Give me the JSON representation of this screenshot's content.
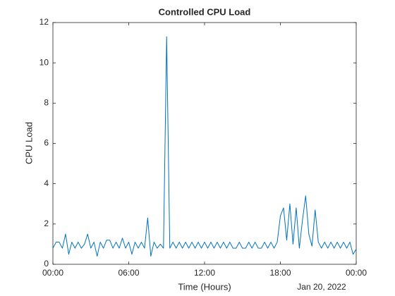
{
  "chart_data": {
    "type": "line",
    "title": "Controlled CPU Load",
    "xlabel": "Time (Hours)",
    "ylabel": "CPU Load",
    "annotation": "Jan 20, 2022",
    "x": [
      0,
      0.25,
      0.5,
      0.75,
      1,
      1.25,
      1.5,
      1.75,
      2,
      2.25,
      2.5,
      2.75,
      3,
      3.25,
      3.5,
      3.75,
      4,
      4.25,
      4.5,
      4.75,
      5,
      5.25,
      5.5,
      5.75,
      6,
      6.25,
      6.5,
      6.75,
      7,
      7.25,
      7.5,
      7.75,
      8,
      8.25,
      8.5,
      8.75,
      9,
      9.25,
      9.5,
      9.75,
      10,
      10.25,
      10.5,
      10.75,
      11,
      11.25,
      11.5,
      11.75,
      12,
      12.25,
      12.5,
      12.75,
      13,
      13.25,
      13.5,
      13.75,
      14,
      14.25,
      14.5,
      14.75,
      15,
      15.25,
      15.5,
      15.75,
      16,
      16.25,
      16.5,
      16.75,
      17,
      17.25,
      17.5,
      17.75,
      18,
      18.25,
      18.5,
      18.75,
      19,
      19.25,
      19.5,
      19.75,
      20,
      20.25,
      20.5,
      20.75,
      21,
      21.25,
      21.5,
      21.75,
      22,
      22.25,
      22.5,
      22.75,
      23,
      23.25,
      23.5,
      23.75,
      24
    ],
    "series": [
      {
        "name": "CPU Load",
        "color": "#0072bd",
        "values": [
          0.8,
          1.1,
          1.1,
          0.8,
          1.5,
          0.5,
          1.1,
          0.8,
          1.1,
          0.8,
          1.0,
          1.5,
          0.8,
          1.1,
          0.4,
          1.1,
          0.8,
          1.2,
          1.2,
          0.8,
          1.1,
          0.8,
          1.3,
          0.8,
          1.1,
          0.5,
          1.1,
          0.8,
          1.1,
          0.8,
          2.3,
          0.4,
          1.1,
          0.8,
          1.0,
          0.8,
          11.3,
          0.8,
          1.1,
          0.8,
          1.1,
          0.8,
          1.1,
          0.8,
          1.1,
          0.8,
          1.1,
          0.8,
          1.1,
          0.8,
          1.1,
          0.8,
          1.1,
          0.8,
          1.1,
          0.8,
          1.1,
          0.8,
          0.8,
          1.1,
          0.8,
          0.8,
          1.1,
          0.8,
          1.1,
          0.8,
          0.8,
          1.1,
          0.8,
          1.1,
          0.8,
          1.1,
          2.4,
          2.8,
          1.2,
          3.0,
          1.0,
          2.8,
          0.8,
          2.2,
          3.4,
          1.5,
          0.9,
          2.7,
          1.1,
          0.8,
          1.1,
          0.8,
          1.1,
          0.8,
          1.1,
          0.8,
          1.1,
          0.8,
          1.1,
          0.5,
          0.75
        ]
      }
    ],
    "xlim": [
      0,
      24
    ],
    "xticks": [
      {
        "value": 0,
        "label": "00:00"
      },
      {
        "value": 6,
        "label": "06:00"
      },
      {
        "value": 12,
        "label": "12:00"
      },
      {
        "value": 18,
        "label": "18:00"
      },
      {
        "value": 24,
        "label": "00:00"
      }
    ],
    "ylim": [
      0,
      12
    ],
    "yticks": [
      0,
      2,
      4,
      6,
      8,
      10,
      12
    ]
  }
}
